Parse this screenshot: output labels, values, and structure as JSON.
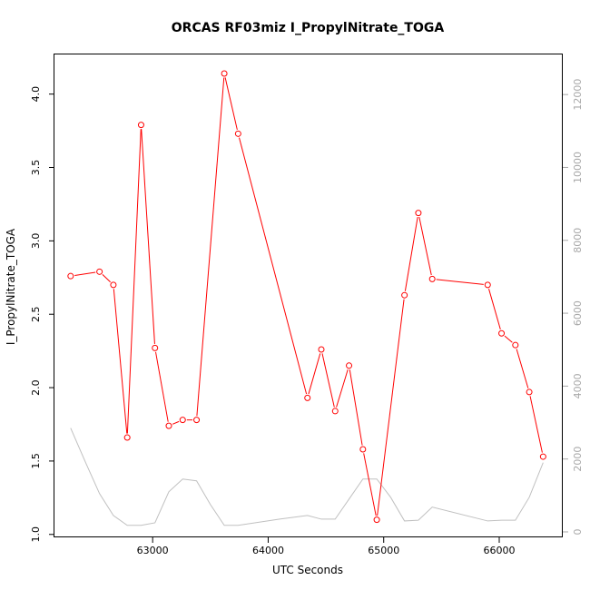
{
  "chart_data": {
    "type": "line",
    "title": "ORCAS RF03miz I_PropylNitrate_TOGA",
    "xlabel": "UTC Seconds",
    "ylabel": "I_PropylNitrate_TOGA",
    "xlim": [
      62150,
      66550
    ],
    "ylim": [
      0.98,
      4.27
    ],
    "y2lim": [
      -150,
      13100
    ],
    "x_ticks": [
      63000,
      64000,
      65000,
      66000
    ],
    "y_ticks": [
      1.0,
      1.5,
      2.0,
      2.5,
      3.0,
      3.5,
      4.0
    ],
    "y2_ticks": [
      0,
      2000,
      4000,
      6000,
      8000,
      10000,
      12000
    ],
    "grid": false,
    "series": [
      {
        "color": "#ff0000",
        "axis": "left",
        "markers": "open-circle",
        "x": [
          62290,
          62540,
          62660,
          62780,
          62900,
          63020,
          63140,
          63260,
          63380,
          63620,
          63740,
          64340,
          64460,
          64580,
          64700,
          64820,
          64940,
          65180,
          65300,
          65420,
          65900,
          66020,
          66140,
          66260,
          66380
        ],
        "y": [
          2.76,
          2.79,
          2.7,
          1.66,
          3.79,
          2.27,
          1.74,
          1.78,
          1.78,
          4.14,
          3.73,
          1.93,
          2.26,
          1.84,
          2.15,
          1.58,
          1.1,
          2.63,
          3.19,
          2.74,
          2.7,
          2.37,
          2.29,
          1.97,
          1.53
        ]
      },
      {
        "color": "#c0c0c0",
        "axis": "right",
        "markers": "none",
        "x": [
          62290,
          62420,
          62540,
          62660,
          62780,
          62900,
          63020,
          63140,
          63260,
          63380,
          63500,
          63620,
          63740,
          64100,
          64340,
          64460,
          64580,
          64700,
          64820,
          64940,
          65060,
          65180,
          65300,
          65420,
          65900,
          66020,
          66140,
          66260,
          66380
        ],
        "y": [
          2850,
          1900,
          1050,
          450,
          180,
          180,
          250,
          1100,
          1450,
          1400,
          750,
          180,
          180,
          350,
          450,
          350,
          350,
          900,
          1450,
          1450,
          950,
          300,
          320,
          680,
          300,
          320,
          320,
          950,
          1900
        ]
      }
    ]
  }
}
